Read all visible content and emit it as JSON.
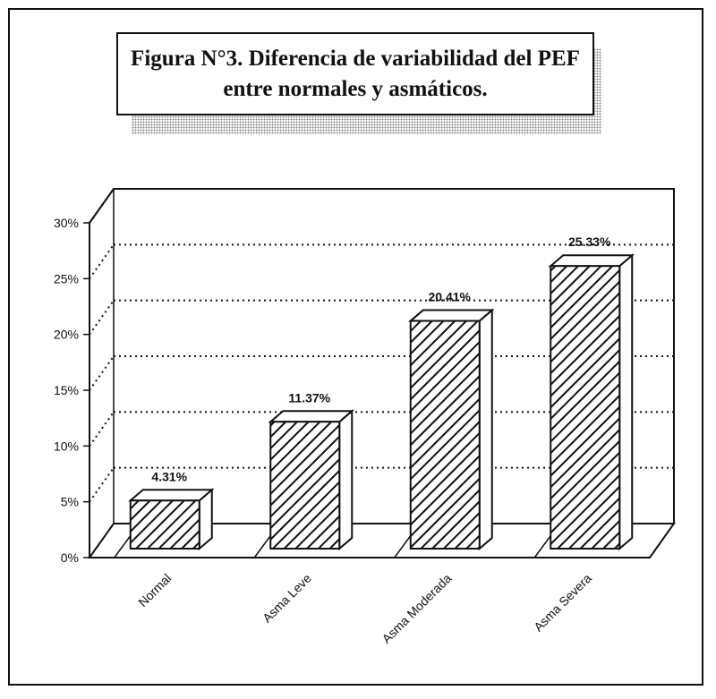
{
  "title": {
    "line1": "Figura N°3. Diferencia de variabilidad del PEF",
    "line2": "entre normales y asmáticos."
  },
  "chart_data": {
    "type": "bar",
    "title": "Figura N°3. Diferencia de variabilidad del PEF entre normales y asmáticos.",
    "categories": [
      "Normal",
      "Asma Leve",
      "Asma Moderada",
      "Asma Severa"
    ],
    "values": [
      4.31,
      11.37,
      20.41,
      25.33
    ],
    "data_labels": [
      "4.31%",
      "11.37%",
      "20.41%",
      "25.33%"
    ],
    "y_ticks": [
      "0%",
      "5%",
      "10%",
      "15%",
      "20%",
      "25%",
      "30%"
    ],
    "ylim": [
      0,
      30
    ],
    "xlabel": "",
    "ylabel": "",
    "grid": true,
    "style": "3d",
    "bar_fill": "diagonal-hatch",
    "colors": {
      "ink": "#111111",
      "fill": "#ffffff"
    }
  }
}
